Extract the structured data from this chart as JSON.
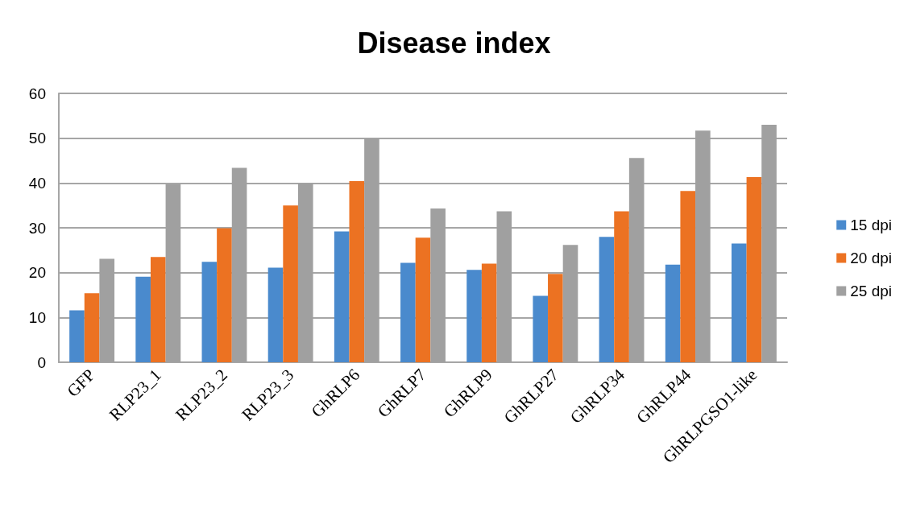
{
  "chart_data": {
    "type": "bar",
    "title": "Disease index",
    "categories": [
      "GFP",
      "RLP23_1",
      "RLP23_2",
      "RLP23_3",
      "GhRLP6",
      "GhRLP7",
      "GhRLP9",
      "GhRLP27",
      "GhRLP34",
      "GhRLP44",
      "GhRLPGSO1-like"
    ],
    "series": [
      {
        "name": "15 dpi",
        "color": "#4a8acd",
        "values": [
          11.6,
          19.1,
          22.4,
          21.1,
          29.2,
          22.2,
          20.6,
          14.8,
          28.0,
          21.8,
          26.5
        ]
      },
      {
        "name": "20 dpi",
        "color": "#ec7222",
        "values": [
          15.4,
          23.5,
          29.9,
          35.0,
          40.4,
          27.8,
          22.0,
          19.7,
          33.7,
          38.2,
          41.3
        ]
      },
      {
        "name": "25 dpi",
        "color": "#a0a0a0",
        "values": [
          23.1,
          39.7,
          43.4,
          40.0,
          50.0,
          34.3,
          33.7,
          26.2,
          45.6,
          51.7,
          53.0
        ]
      }
    ],
    "ylim": [
      0,
      60
    ],
    "yticks": [
      0,
      10,
      20,
      30,
      40,
      50,
      60
    ],
    "grid": "y",
    "legend": "right"
  }
}
